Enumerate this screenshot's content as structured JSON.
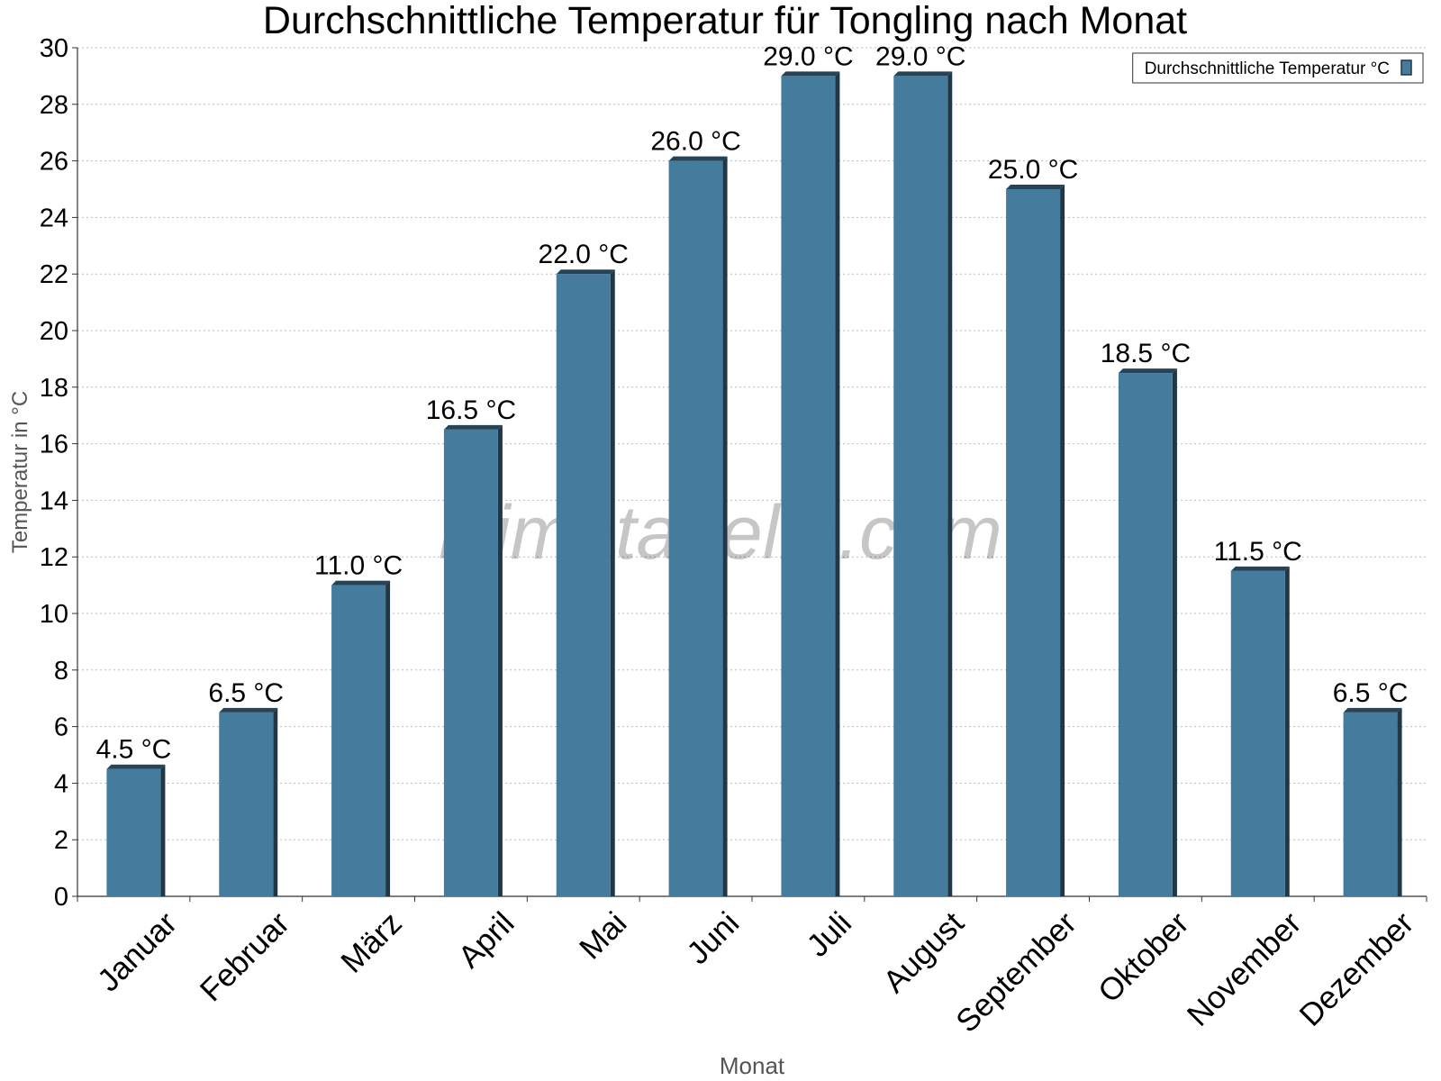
{
  "chart_data": {
    "type": "bar",
    "title": "Durchschnittliche Temperatur für Tongling nach Monat",
    "x_label": "Monat",
    "y_label": "Temperatur in °C",
    "watermark": "klimatabelle.com",
    "categories": [
      "Januar",
      "Februar",
      "März",
      "April",
      "Mai",
      "Juni",
      "Juli",
      "August",
      "September",
      "Oktober",
      "November",
      "Dezember"
    ],
    "series": [
      {
        "name": "Durchschnittliche Temperatur °C",
        "color": "#457b9d",
        "values": [
          4.5,
          6.5,
          11,
          16.5,
          22,
          26,
          29,
          29,
          25,
          18.5,
          11.5,
          6.5
        ],
        "value_labels": [
          "4.5 °C",
          "6.5 °C",
          "11.0 °C",
          "16.5 °C",
          "22.0 °C",
          "26.0 °C",
          "29.0 °C",
          "29.0 °C",
          "25.0 °C",
          "18.5 °C",
          "11.5 °C",
          "6.5 °C"
        ]
      }
    ],
    "ylim": [
      0,
      30
    ],
    "yticks": [
      0,
      2,
      4,
      6,
      8,
      10,
      12,
      14,
      16,
      18,
      20,
      22,
      24,
      26,
      28,
      30
    ],
    "grid": true,
    "legend": "top-right"
  }
}
